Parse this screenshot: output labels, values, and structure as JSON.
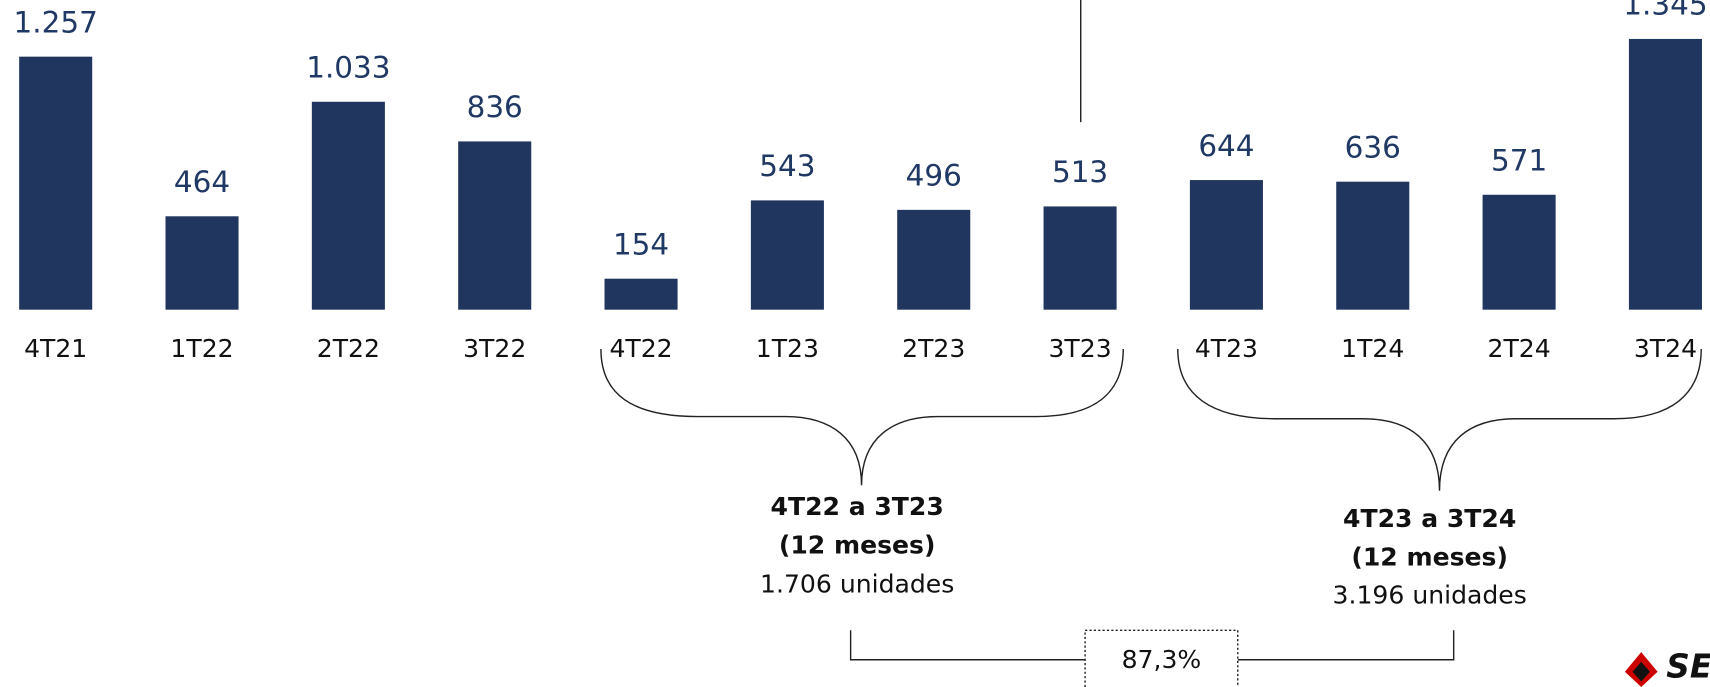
{
  "chart_data": {
    "type": "bar",
    "categories": [
      "4T21",
      "1T22",
      "2T22",
      "3T22",
      "4T22",
      "1T23",
      "2T23",
      "3T23",
      "4T23",
      "1T24",
      "2T24",
      "3T24"
    ],
    "values": [
      1257,
      464,
      1033,
      836,
      154,
      543,
      496,
      513,
      644,
      636,
      571,
      1345
    ],
    "value_labels": [
      "1.257",
      "464",
      "1.033",
      "836",
      "154",
      "543",
      "496",
      "513",
      "644",
      "636",
      "571",
      "1.345"
    ],
    "color": "#21365f",
    "annotations": {
      "group1": {
        "title": "4T22 a 3T23",
        "period": "(12 meses)",
        "total": "1.706 unidades"
      },
      "group2": {
        "title": "4T23 a 3T24",
        "period": "(12 meses)",
        "total": "3.196 unidades"
      },
      "growth": "87,3%"
    },
    "logo": "SE"
  }
}
